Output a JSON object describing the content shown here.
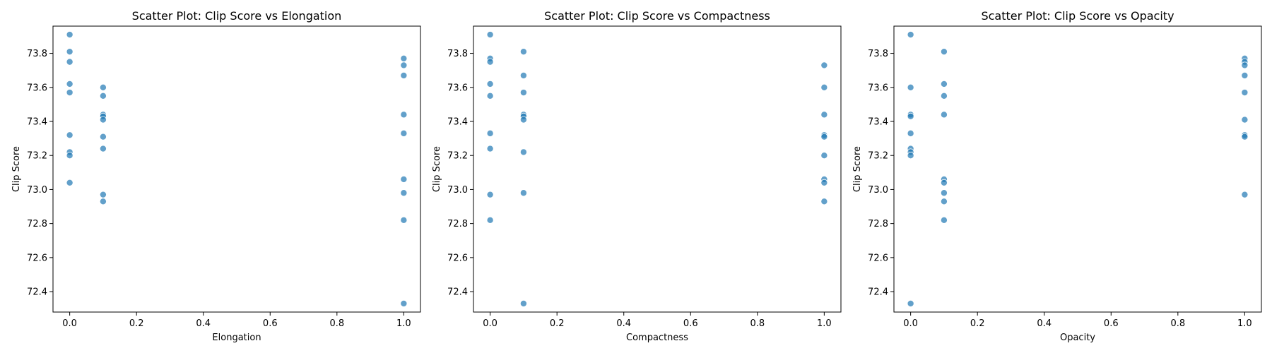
{
  "colors": {
    "marker": "#1f77b4",
    "marker_opacity": 0.7
  },
  "chart_data": [
    {
      "type": "scatter",
      "title": "Scatter Plot: Clip Score vs Elongation",
      "xlabel": "Elongation",
      "ylabel": "Clip Score",
      "xlim": [
        -0.05,
        1.05
      ],
      "ylim": [
        72.28,
        73.96
      ],
      "xticks": [
        0.0,
        0.2,
        0.4,
        0.6,
        0.8,
        1.0
      ],
      "xtick_labels": [
        "0.0",
        "0.2",
        "0.4",
        "0.6",
        "0.8",
        "1.0"
      ],
      "yticks": [
        72.4,
        72.6,
        72.8,
        73.0,
        73.2,
        73.4,
        73.6,
        73.8
      ],
      "ytick_labels": [
        "72.4",
        "72.6",
        "72.8",
        "73.0",
        "73.2",
        "73.4",
        "73.6",
        "73.8"
      ],
      "grid": false,
      "points": [
        {
          "x": 0.0,
          "y": 73.91
        },
        {
          "x": 0.0,
          "y": 73.81
        },
        {
          "x": 0.0,
          "y": 73.75
        },
        {
          "x": 0.0,
          "y": 73.62
        },
        {
          "x": 0.0,
          "y": 73.57
        },
        {
          "x": 0.0,
          "y": 73.32
        },
        {
          "x": 0.0,
          "y": 73.22
        },
        {
          "x": 0.0,
          "y": 73.2
        },
        {
          "x": 0.0,
          "y": 73.04
        },
        {
          "x": 0.1,
          "y": 73.6
        },
        {
          "x": 0.1,
          "y": 73.55
        },
        {
          "x": 0.1,
          "y": 73.44
        },
        {
          "x": 0.1,
          "y": 73.43
        },
        {
          "x": 0.1,
          "y": 73.41
        },
        {
          "x": 0.1,
          "y": 73.31
        },
        {
          "x": 0.1,
          "y": 73.24
        },
        {
          "x": 0.1,
          "y": 72.97
        },
        {
          "x": 0.1,
          "y": 72.93
        },
        {
          "x": 1.0,
          "y": 73.77
        },
        {
          "x": 1.0,
          "y": 73.73
        },
        {
          "x": 1.0,
          "y": 73.67
        },
        {
          "x": 1.0,
          "y": 73.44
        },
        {
          "x": 1.0,
          "y": 73.33
        },
        {
          "x": 1.0,
          "y": 73.06
        },
        {
          "x": 1.0,
          "y": 72.98
        },
        {
          "x": 1.0,
          "y": 72.82
        },
        {
          "x": 1.0,
          "y": 72.33
        }
      ]
    },
    {
      "type": "scatter",
      "title": "Scatter Plot: Clip Score vs Compactness",
      "xlabel": "Compactness",
      "ylabel": "Clip Score",
      "xlim": [
        -0.05,
        1.05
      ],
      "ylim": [
        72.28,
        73.96
      ],
      "xticks": [
        0.0,
        0.2,
        0.4,
        0.6,
        0.8,
        1.0
      ],
      "xtick_labels": [
        "0.0",
        "0.2",
        "0.4",
        "0.6",
        "0.8",
        "1.0"
      ],
      "yticks": [
        72.4,
        72.6,
        72.8,
        73.0,
        73.2,
        73.4,
        73.6,
        73.8
      ],
      "ytick_labels": [
        "72.4",
        "72.6",
        "72.8",
        "73.0",
        "73.2",
        "73.4",
        "73.6",
        "73.8"
      ],
      "grid": false,
      "points": [
        {
          "x": 0.0,
          "y": 73.91
        },
        {
          "x": 0.0,
          "y": 73.77
        },
        {
          "x": 0.0,
          "y": 73.75
        },
        {
          "x": 0.0,
          "y": 73.62
        },
        {
          "x": 0.0,
          "y": 73.55
        },
        {
          "x": 0.0,
          "y": 73.33
        },
        {
          "x": 0.0,
          "y": 73.24
        },
        {
          "x": 0.0,
          "y": 72.97
        },
        {
          "x": 0.0,
          "y": 72.82
        },
        {
          "x": 0.1,
          "y": 73.81
        },
        {
          "x": 0.1,
          "y": 73.67
        },
        {
          "x": 0.1,
          "y": 73.57
        },
        {
          "x": 0.1,
          "y": 73.44
        },
        {
          "x": 0.1,
          "y": 73.43
        },
        {
          "x": 0.1,
          "y": 73.41
        },
        {
          "x": 0.1,
          "y": 73.22
        },
        {
          "x": 0.1,
          "y": 72.98
        },
        {
          "x": 0.1,
          "y": 72.33
        },
        {
          "x": 1.0,
          "y": 73.73
        },
        {
          "x": 1.0,
          "y": 73.6
        },
        {
          "x": 1.0,
          "y": 73.44
        },
        {
          "x": 1.0,
          "y": 73.32
        },
        {
          "x": 1.0,
          "y": 73.31
        },
        {
          "x": 1.0,
          "y": 73.2
        },
        {
          "x": 1.0,
          "y": 73.06
        },
        {
          "x": 1.0,
          "y": 73.04
        },
        {
          "x": 1.0,
          "y": 72.93
        }
      ]
    },
    {
      "type": "scatter",
      "title": "Scatter Plot: Clip Score vs Opacity",
      "xlabel": "Opacity",
      "ylabel": "Clip Score",
      "xlim": [
        -0.05,
        1.05
      ],
      "ylim": [
        72.28,
        73.96
      ],
      "xticks": [
        0.0,
        0.2,
        0.4,
        0.6,
        0.8,
        1.0
      ],
      "xtick_labels": [
        "0.0",
        "0.2",
        "0.4",
        "0.6",
        "0.8",
        "1.0"
      ],
      "yticks": [
        72.4,
        72.6,
        72.8,
        73.0,
        73.2,
        73.4,
        73.6,
        73.8
      ],
      "ytick_labels": [
        "72.4",
        "72.6",
        "72.8",
        "73.0",
        "73.2",
        "73.4",
        "73.6",
        "73.8"
      ],
      "grid": false,
      "points": [
        {
          "x": 0.0,
          "y": 73.91
        },
        {
          "x": 0.0,
          "y": 73.6
        },
        {
          "x": 0.0,
          "y": 73.44
        },
        {
          "x": 0.0,
          "y": 73.43
        },
        {
          "x": 0.0,
          "y": 73.33
        },
        {
          "x": 0.0,
          "y": 73.24
        },
        {
          "x": 0.0,
          "y": 73.22
        },
        {
          "x": 0.0,
          "y": 73.2
        },
        {
          "x": 0.0,
          "y": 72.33
        },
        {
          "x": 0.1,
          "y": 73.81
        },
        {
          "x": 0.1,
          "y": 73.62
        },
        {
          "x": 0.1,
          "y": 73.55
        },
        {
          "x": 0.1,
          "y": 73.44
        },
        {
          "x": 0.1,
          "y": 73.06
        },
        {
          "x": 0.1,
          "y": 73.04
        },
        {
          "x": 0.1,
          "y": 72.98
        },
        {
          "x": 0.1,
          "y": 72.93
        },
        {
          "x": 0.1,
          "y": 72.82
        },
        {
          "x": 1.0,
          "y": 73.77
        },
        {
          "x": 1.0,
          "y": 73.75
        },
        {
          "x": 1.0,
          "y": 73.73
        },
        {
          "x": 1.0,
          "y": 73.67
        },
        {
          "x": 1.0,
          "y": 73.57
        },
        {
          "x": 1.0,
          "y": 73.41
        },
        {
          "x": 1.0,
          "y": 73.32
        },
        {
          "x": 1.0,
          "y": 73.31
        },
        {
          "x": 1.0,
          "y": 72.97
        }
      ]
    }
  ]
}
